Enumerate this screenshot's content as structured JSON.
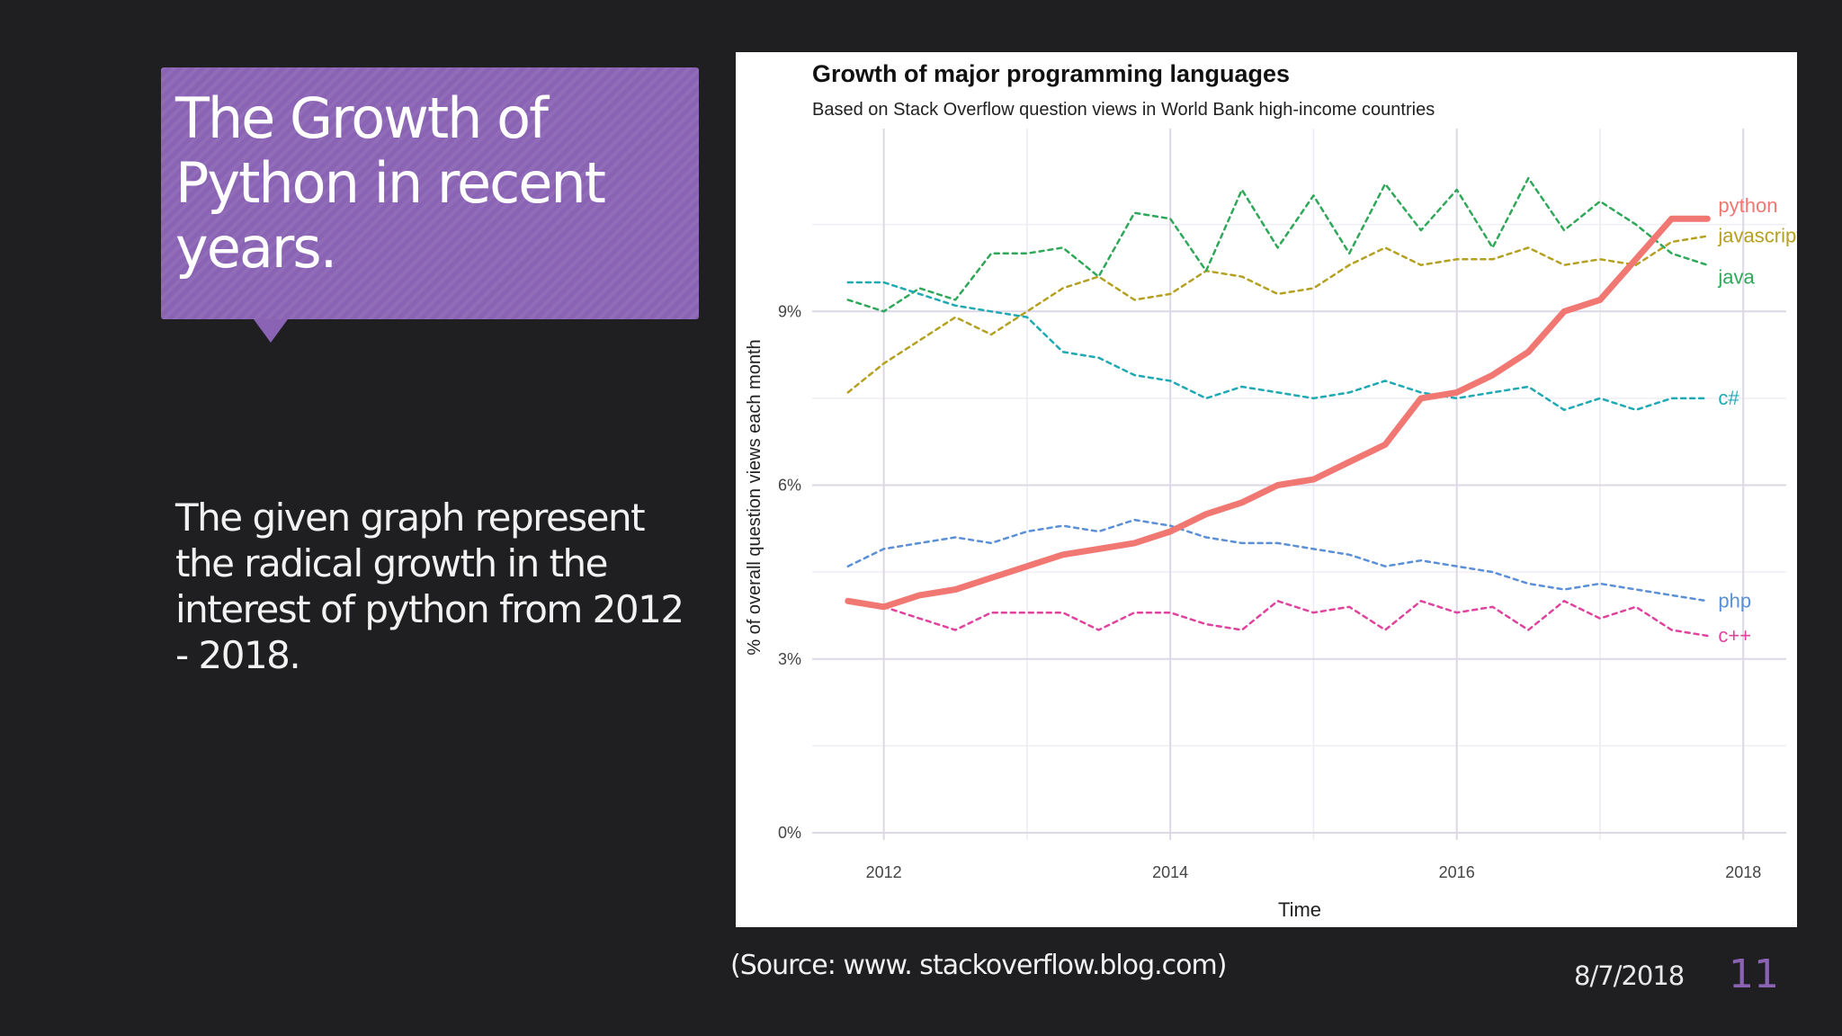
{
  "slide": {
    "title": "The Growth of Python in recent years.",
    "body": "The given graph represent the radical growth in the interest of python from 2012 - 2018.",
    "source": "(Source: www. stackoverflow.blog.com)",
    "date": "8/7/2018",
    "number": "11"
  },
  "colors": {
    "accent": "#8a63b4",
    "background": "#1f1e20"
  },
  "chart_data": {
    "type": "line",
    "title": "Growth of major programming languages",
    "subtitle": "Based on Stack Overflow question views in World Bank high-income countries",
    "xlabel": "Time",
    "ylabel": "% of overall question views each month",
    "xlim": [
      2011.5,
      2018.3
    ],
    "ylim": [
      0,
      12
    ],
    "x_ticks": [
      2012,
      2014,
      2016,
      2018
    ],
    "x_tick_labels": [
      "2012",
      "2014",
      "2016",
      "2018"
    ],
    "y_ticks": [
      0,
      3,
      6,
      9
    ],
    "y_tick_labels": [
      "0%",
      "3%",
      "6%",
      "9%"
    ],
    "grid": true,
    "x": [
      2011.75,
      2012.0,
      2012.25,
      2012.5,
      2012.75,
      2013.0,
      2013.25,
      2013.5,
      2013.75,
      2014.0,
      2014.25,
      2014.5,
      2014.75,
      2015.0,
      2015.25,
      2015.5,
      2015.75,
      2016.0,
      2016.25,
      2016.5,
      2016.75,
      2017.0,
      2017.25,
      2017.5,
      2017.75
    ],
    "series": [
      {
        "name": "python",
        "color": "#f07772",
        "style": "solid",
        "label_offset": -1,
        "values": [
          4.0,
          3.9,
          4.1,
          4.2,
          4.4,
          4.6,
          4.8,
          4.9,
          5.0,
          5.2,
          5.5,
          5.7,
          6.0,
          6.1,
          6.4,
          6.7,
          7.5,
          7.6,
          7.9,
          8.3,
          9.0,
          9.2,
          9.9,
          10.6,
          10.6
        ]
      },
      {
        "name": "javascript",
        "color": "#b5a121",
        "style": "dashed",
        "label_offset": 0,
        "values": [
          7.6,
          8.1,
          8.5,
          8.9,
          8.6,
          9.0,
          9.4,
          9.6,
          9.2,
          9.3,
          9.7,
          9.6,
          9.3,
          9.4,
          9.8,
          10.1,
          9.8,
          9.9,
          9.9,
          10.1,
          9.8,
          9.9,
          9.8,
          10.2,
          10.3
        ]
      },
      {
        "name": "java",
        "color": "#2fa85a",
        "style": "dashed",
        "label_offset": 1,
        "values": [
          9.2,
          9.0,
          9.4,
          9.2,
          10.0,
          10.0,
          10.1,
          9.6,
          10.7,
          10.6,
          9.7,
          11.1,
          10.1,
          11.0,
          10.0,
          11.2,
          10.4,
          11.1,
          10.1,
          11.3,
          10.4,
          10.9,
          10.5,
          10.0,
          9.8
        ]
      },
      {
        "name": "c#",
        "color": "#1fa9b3",
        "style": "dashed",
        "label_offset": 0,
        "values": [
          9.5,
          9.5,
          9.3,
          9.1,
          9.0,
          8.9,
          8.3,
          8.2,
          7.9,
          7.8,
          7.5,
          7.7,
          7.6,
          7.5,
          7.6,
          7.8,
          7.6,
          7.5,
          7.6,
          7.7,
          7.3,
          7.5,
          7.3,
          7.5,
          7.5
        ]
      },
      {
        "name": "php",
        "color": "#5b8fd6",
        "style": "dashed",
        "label_offset": 0,
        "values": [
          4.6,
          4.9,
          5.0,
          5.1,
          5.0,
          5.2,
          5.3,
          5.2,
          5.4,
          5.3,
          5.1,
          5.0,
          5.0,
          4.9,
          4.8,
          4.6,
          4.7,
          4.6,
          4.5,
          4.3,
          4.2,
          4.3,
          4.2,
          4.1,
          4.0
        ]
      },
      {
        "name": "c++",
        "color": "#e0439e",
        "style": "dashed",
        "label_offset": 0,
        "values": [
          4.0,
          3.9,
          3.7,
          3.5,
          3.8,
          3.8,
          3.8,
          3.5,
          3.8,
          3.8,
          3.6,
          3.5,
          4.0,
          3.8,
          3.9,
          3.5,
          4.0,
          3.8,
          3.9,
          3.5,
          4.0,
          3.7,
          3.9,
          3.5,
          3.4
        ]
      }
    ]
  }
}
